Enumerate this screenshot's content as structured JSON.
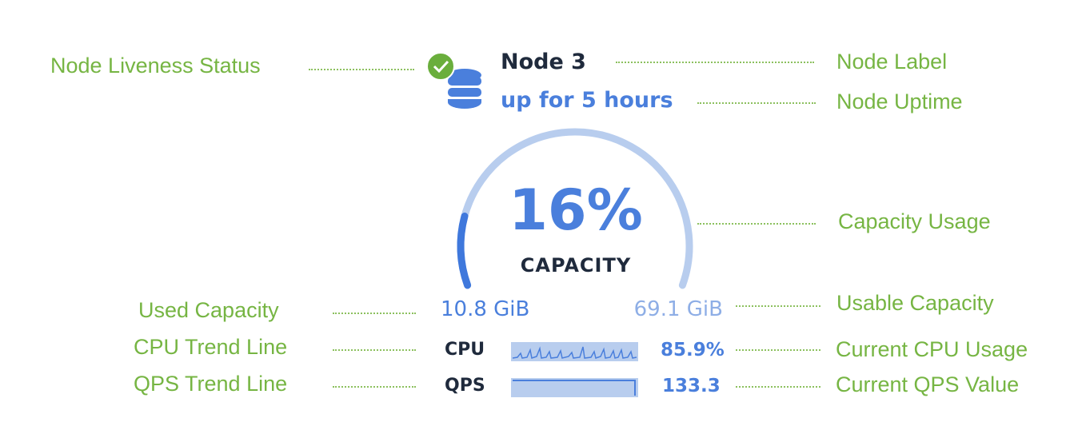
{
  "node": {
    "label": "Node 3",
    "uptime": "up for 5 hours",
    "liveness_icon": "check-circle-icon",
    "node_icon": "database-icon"
  },
  "capacity": {
    "percent_label": "16%",
    "percent": 16,
    "label": "CAPACITY",
    "used": "10.8 GiB",
    "usable": "69.1 GiB"
  },
  "cpu": {
    "label": "CPU",
    "value": "85.9%"
  },
  "qps": {
    "label": "QPS",
    "value": "133.3"
  },
  "annotations": {
    "liveness": "Node Liveness Status",
    "node_label": "Node Label",
    "uptime": "Node Uptime",
    "capacity_usage": "Capacity Usage",
    "used_capacity": "Used Capacity",
    "usable_capacity": "Usable Capacity",
    "cpu_trend": "CPU Trend Line",
    "cpu_current": "Current CPU Usage",
    "qps_trend": "QPS Trend Line",
    "qps_current": "Current QPS Value"
  },
  "colors": {
    "annotation": "#76b543",
    "accent": "#4a7fdc",
    "arc_track": "#b8cdee",
    "status_ok": "#6aae3c",
    "text_dark": "#1f2a3c"
  }
}
